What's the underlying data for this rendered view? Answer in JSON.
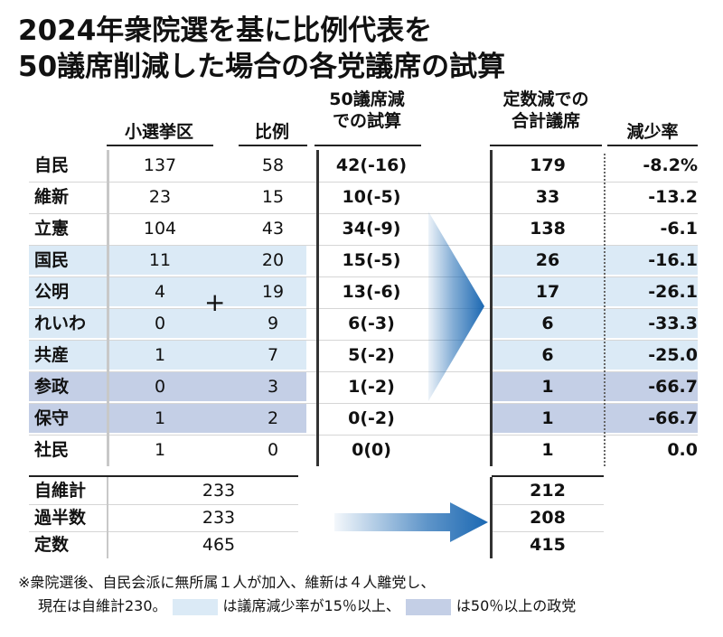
{
  "title": {
    "line1": "2024年衆院選を基に比例代表を",
    "line2": "50議席削減した場合の各党議席の試算"
  },
  "headers": {
    "district": "小選挙区",
    "pr": "比例",
    "trial_l1": "50議席減",
    "trial_l2": "での試算",
    "total_l1": "定数減での",
    "total_l2": "合計議席",
    "rate": "減少率"
  },
  "colors": {
    "light_band": "#dbeaf6",
    "dark_band": "#c4cfe6",
    "arrow": "#1b68b2",
    "district_rule": "#c8c8c8"
  },
  "parties": [
    {
      "name": "自民",
      "district": "137",
      "pr": "58",
      "trial": "42(-16)",
      "total": "179",
      "rate": "-8.2%",
      "shade": "none"
    },
    {
      "name": "維新",
      "district": "23",
      "pr": "15",
      "trial": "10(-5)",
      "total": "33",
      "rate": "-13.2",
      "shade": "none"
    },
    {
      "name": "立憲",
      "district": "104",
      "pr": "43",
      "trial": "34(-9)",
      "total": "138",
      "rate": "-6.1",
      "shade": "none"
    },
    {
      "name": "国民",
      "district": "11",
      "pr": "20",
      "trial": "15(-5)",
      "total": "26",
      "rate": "-16.1",
      "shade": "light"
    },
    {
      "name": "公明",
      "district": "4",
      "pr": "19",
      "trial": "13(-6)",
      "total": "17",
      "rate": "-26.1",
      "shade": "light"
    },
    {
      "name": "れいわ",
      "district": "0",
      "pr": "9",
      "trial": "6(-3)",
      "total": "6",
      "rate": "-33.3",
      "shade": "light"
    },
    {
      "name": "共産",
      "district": "1",
      "pr": "7",
      "trial": "5(-2)",
      "total": "6",
      "rate": "-25.0",
      "shade": "light"
    },
    {
      "name": "参政",
      "district": "0",
      "pr": "3",
      "trial": "1(-2)",
      "total": "1",
      "rate": "-66.7",
      "shade": "dark"
    },
    {
      "name": "保守",
      "district": "1",
      "pr": "2",
      "trial": "0(-2)",
      "total": "1",
      "rate": "-66.7",
      "shade": "dark"
    },
    {
      "name": "社民",
      "district": "1",
      "pr": "0",
      "trial": "0(0)",
      "total": "1",
      "rate": "0.0",
      "shade": "none"
    }
  ],
  "plus_sign": "+",
  "summary": [
    {
      "name": "自維計",
      "current": "233",
      "after": "212"
    },
    {
      "name": "過半数",
      "current": "233",
      "after": "208"
    },
    {
      "name": "定数",
      "current": "465",
      "after": "415"
    }
  ],
  "footnote": {
    "line1": "※衆院選後、自民会派に無所属１人が加入、維新は４人離党し、",
    "line2_a": "現在は自維計230。",
    "line2_b": "は議席減少率が15％以上、",
    "line2_c": "は50％以上の政党"
  }
}
